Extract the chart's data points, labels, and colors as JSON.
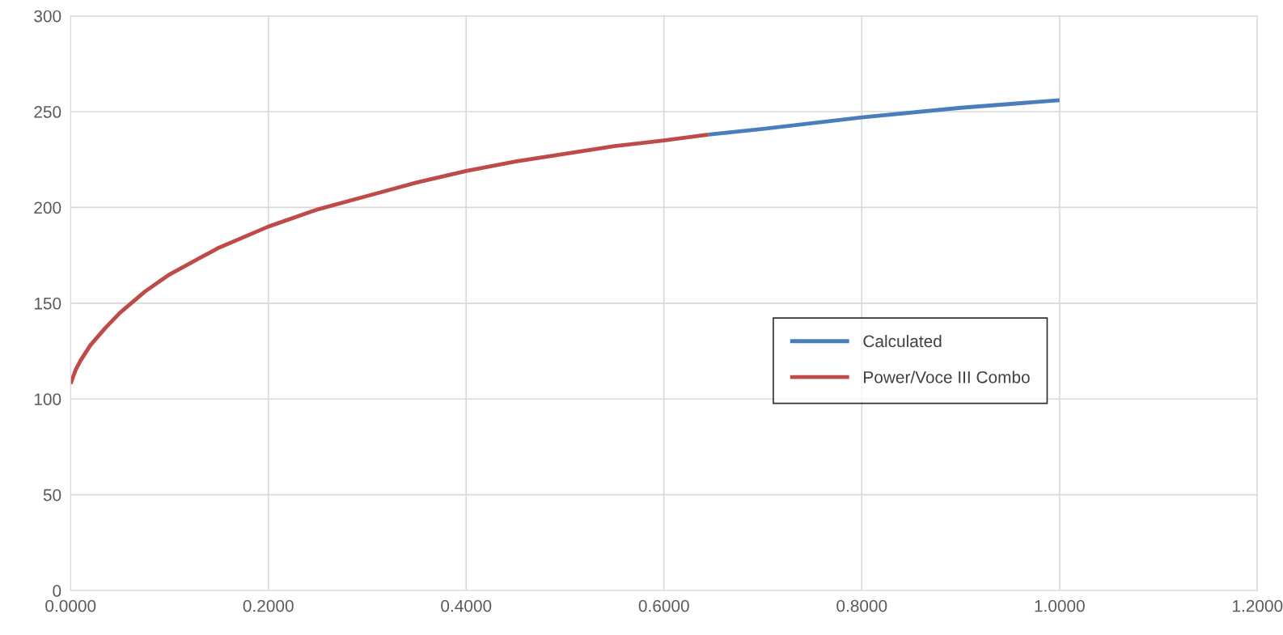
{
  "chart_data": {
    "type": "line",
    "xlim": [
      0,
      1.2
    ],
    "ylim": [
      0,
      300
    ],
    "xticks": [
      {
        "value": 0,
        "label": "0.0000"
      },
      {
        "value": 0.2,
        "label": "0.2000"
      },
      {
        "value": 0.4,
        "label": "0.4000"
      },
      {
        "value": 0.6,
        "label": "0.6000"
      },
      {
        "value": 0.8,
        "label": "0.8000"
      },
      {
        "value": 1.0,
        "label": "1.0000"
      },
      {
        "value": 1.2,
        "label": "1.2000"
      }
    ],
    "yticks": [
      0,
      50,
      100,
      150,
      200,
      250,
      300
    ],
    "grid": true,
    "legend": "center right",
    "marker": "none",
    "line_style": "solid",
    "series": [
      {
        "name": "Calculated",
        "color": "#4a7ebb",
        "x": [
          0.645,
          0.7,
          0.8,
          0.9,
          1.0
        ],
        "values": [
          238,
          241,
          247,
          252,
          256
        ]
      },
      {
        "name": "Power/Voce III Combo",
        "color": "#be4b48",
        "x": [
          0,
          0.005,
          0.01,
          0.02,
          0.035,
          0.05,
          0.075,
          0.1,
          0.15,
          0.2,
          0.25,
          0.3,
          0.35,
          0.4,
          0.45,
          0.5,
          0.55,
          0.6,
          0.645
        ],
        "values": [
          108,
          115,
          120,
          128,
          137,
          145,
          156,
          165,
          179,
          190,
          199,
          206,
          213,
          219,
          224,
          228,
          232,
          235,
          238
        ]
      }
    ]
  }
}
